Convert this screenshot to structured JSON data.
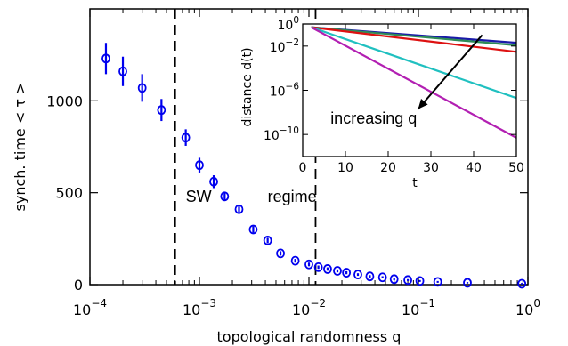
{
  "chart_data": [
    {
      "type": "scatter",
      "xlabel": "topological randomness q",
      "ylabel": "synch. time < τ >",
      "xscale": "log",
      "xlim": [
        0.0001,
        1
      ],
      "ylim": [
        0,
        1500
      ],
      "x_ticks": [
        {
          "value": 0.0001,
          "base": "10",
          "exp": "−4"
        },
        {
          "value": 0.001,
          "base": "10",
          "exp": "−3"
        },
        {
          "value": 0.01,
          "base": "10",
          "exp": "−2"
        },
        {
          "value": 0.1,
          "base": "10",
          "exp": "−1"
        },
        {
          "value": 1,
          "base": "10",
          "exp": "0"
        }
      ],
      "y_ticks": [
        {
          "value": 0,
          "label": "0"
        },
        {
          "value": 500,
          "label": "500"
        },
        {
          "value": 1000,
          "label": "1000"
        }
      ],
      "color": "#0000ee",
      "series": [
        {
          "x": [
            0.00014,
            0.0002,
            0.0003,
            0.00045,
            0.00075,
            0.001,
            0.00135,
            0.0017,
            0.0023,
            0.0031,
            0.0042,
            0.0055,
            0.0075,
            0.01,
            0.0122,
            0.0148,
            0.0182,
            0.022,
            0.028,
            0.036,
            0.047,
            0.06,
            0.08,
            0.103,
            0.15,
            0.28,
            0.88
          ],
          "y": [
            1230,
            1160,
            1070,
            950,
            800,
            650,
            560,
            480,
            410,
            300,
            240,
            170,
            130,
            110,
            95,
            85,
            75,
            65,
            55,
            45,
            40,
            30,
            25,
            20,
            15,
            10,
            5
          ],
          "err": [
            85,
            80,
            75,
            60,
            45,
            40,
            35,
            25,
            22,
            18,
            15,
            12,
            10,
            10,
            9,
            9,
            8,
            8,
            7,
            7,
            6,
            6,
            5,
            5,
            5,
            4,
            4
          ]
        }
      ],
      "vlines": [
        0.0006,
        0.0115
      ],
      "annotations": [
        {
          "text": "SW",
          "x": 0.00075,
          "y": 450
        },
        {
          "text": "regime",
          "x": 0.0042,
          "y": 450
        }
      ]
    },
    {
      "type": "line",
      "xlabel": "t",
      "ylabel": "distance d(t)",
      "xlim": [
        0,
        50
      ],
      "yscale": "log",
      "ylim": [
        1e-12,
        1
      ],
      "x_ticks": [
        0,
        10,
        20,
        30,
        40,
        50
      ],
      "y_ticks": [
        {
          "value": 1,
          "base": "10",
          "exp": "0"
        },
        {
          "value": 0.01,
          "base": "10",
          "exp": "−2"
        },
        {
          "value": 1e-06,
          "base": "10",
          "exp": "−6"
        },
        {
          "value": 1e-10,
          "base": "10",
          "exp": "−10"
        }
      ],
      "annotation": "increasing q",
      "series": [
        {
          "color": "#1a1aa8",
          "x": [
            2,
            50
          ],
          "y": [
            0.5,
            0.02
          ]
        },
        {
          "color": "#2e8b57",
          "x": [
            2,
            50
          ],
          "y": [
            0.5,
            0.012
          ]
        },
        {
          "color": "#dd1111",
          "x": [
            2,
            50
          ],
          "y": [
            0.5,
            0.003
          ]
        },
        {
          "color": "#20c0c0",
          "x": [
            2,
            50
          ],
          "y": [
            0.5,
            2e-07
          ]
        },
        {
          "color": "#b21fb2",
          "x": [
            2,
            50
          ],
          "y": [
            0.5,
            5e-11
          ]
        }
      ]
    }
  ]
}
